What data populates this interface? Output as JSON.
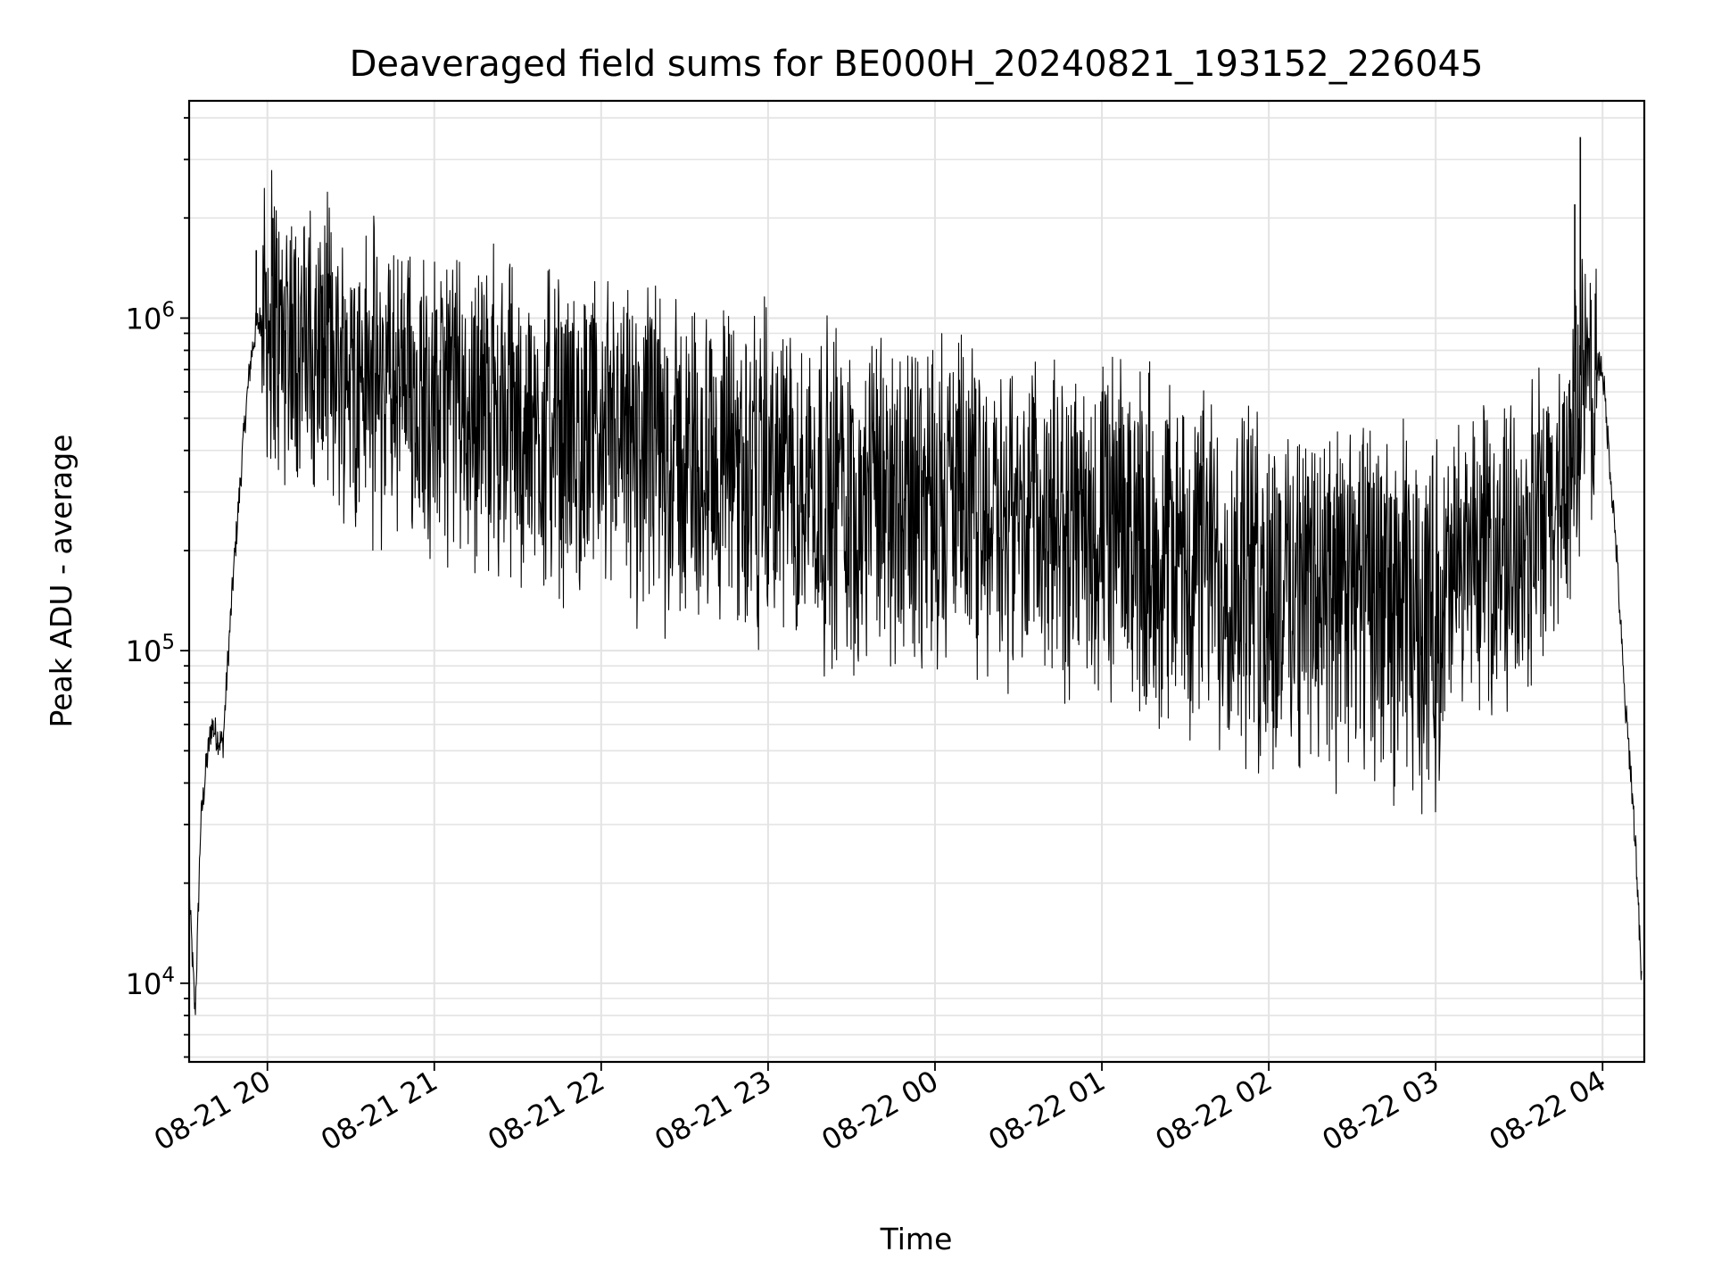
{
  "chart_data": {
    "type": "line",
    "title": "Deaveraged field sums for BE000H_20240821_193152_226045",
    "xlabel": "Time",
    "ylabel": "Peak ADU - average",
    "x_axis": {
      "kind": "time",
      "range": [
        "2024-08-21 19:31:52",
        "2024-08-22 04:15:00"
      ],
      "ticks": [
        "2024-08-21 20:00",
        "2024-08-21 21:00",
        "2024-08-21 22:00",
        "2024-08-21 23:00",
        "2024-08-22 00:00",
        "2024-08-22 01:00",
        "2024-08-22 02:00",
        "2024-08-22 03:00",
        "2024-08-22 04:00"
      ],
      "tick_labels": [
        "08-21 20",
        "08-21 21",
        "08-21 22",
        "08-21 23",
        "08-22 00",
        "08-22 01",
        "08-22 02",
        "08-22 03",
        "08-22 04"
      ]
    },
    "y_axis": {
      "scale": "log",
      "ylim": [
        5800,
        4500000
      ],
      "ticks": [
        10000,
        100000,
        1000000
      ],
      "tick_labels": [
        {
          "base": "10",
          "exp": "4"
        },
        {
          "base": "10",
          "exp": "5"
        },
        {
          "base": "10",
          "exp": "6"
        }
      ]
    },
    "grid": true,
    "series_color": "#000000",
    "series": [
      {
        "x": [
          "2024-08-21 19:32",
          "2024-08-21 19:34",
          "2024-08-21 19:35",
          "2024-08-21 19:36",
          "2024-08-21 19:38",
          "2024-08-21 19:40",
          "2024-08-21 19:42",
          "2024-08-21 19:44",
          "2024-08-21 19:46",
          "2024-08-21 19:48",
          "2024-08-21 19:50",
          "2024-08-21 19:52",
          "2024-08-21 19:54",
          "2024-08-21 19:56",
          "2024-08-21 19:58",
          "2024-08-21 20:00",
          "2024-08-21 20:05",
          "2024-08-21 20:10",
          "2024-08-21 20:15",
          "2024-08-21 20:20",
          "2024-08-21 20:25",
          "2024-08-21 20:30",
          "2024-08-21 20:45",
          "2024-08-21 21:00",
          "2024-08-21 21:15",
          "2024-08-21 21:30",
          "2024-08-21 22:00",
          "2024-08-21 22:30",
          "2024-08-21 23:00",
          "2024-08-21 23:30",
          "2024-08-22 00:00",
          "2024-08-22 00:30",
          "2024-08-22 01:00",
          "2024-08-22 01:30",
          "2024-08-22 02:00",
          "2024-08-22 02:30",
          "2024-08-22 03:00",
          "2024-08-22 03:30",
          "2024-08-22 03:45",
          "2024-08-22 03:50",
          "2024-08-22 03:55",
          "2024-08-22 04:00",
          "2024-08-22 04:05",
          "2024-08-22 04:08",
          "2024-08-22 04:10",
          "2024-08-22 04:12",
          "2024-08-22 04:14"
        ],
        "y": [
          18000,
          8000,
          15000,
          30000,
          45000,
          60000,
          55000,
          52000,
          100000,
          180000,
          300000,
          500000,
          750000,
          950000,
          1000000,
          800000,
          700000,
          750000,
          600000,
          650000,
          600000,
          550000,
          500000,
          450000,
          480000,
          420000,
          380000,
          360000,
          340000,
          320000,
          320000,
          300000,
          280000,
          250000,
          240000,
          230000,
          220000,
          250000,
          350000,
          600000,
          800000,
          700000,
          200000,
          70000,
          45000,
          25000,
          10000
        ]
      }
    ],
    "noise_envelope": {
      "lower": [
        [
          0.0,
          0.3
        ],
        [
          0.15,
          0.35
        ],
        [
          0.6,
          0.55
        ],
        [
          0.7,
          0.6
        ],
        [
          0.75,
          0.68
        ],
        [
          0.88,
          0.74
        ],
        [
          0.9,
          0.5
        ]
      ],
      "upper": [
        [
          0.0,
          1.25
        ],
        [
          0.15,
          1.3
        ],
        [
          0.6,
          1.25
        ],
        [
          0.75,
          1.22
        ],
        [
          0.88,
          1.2
        ],
        [
          0.9,
          1.05
        ]
      ]
    },
    "peaks": [
      {
        "x": "2024-08-21 19:56",
        "y": 1600000
      },
      {
        "x": "2024-08-21 20:02",
        "y": 2000000
      },
      {
        "x": "2024-08-22 03:50",
        "y": 2200000
      },
      {
        "x": "2024-08-22 03:52",
        "y": 3500000
      }
    ]
  }
}
